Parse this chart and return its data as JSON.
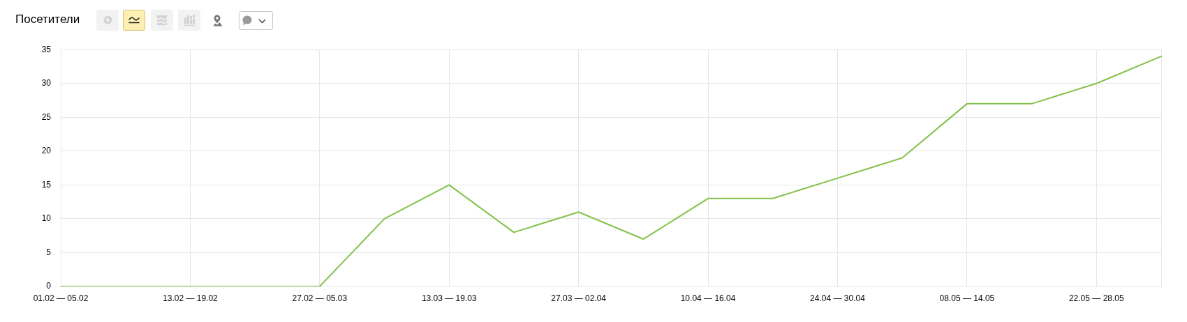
{
  "chart_data": {
    "type": "line",
    "title": "Посетители",
    "categories": [
      "01.02 — 05.02",
      null,
      "13.02 — 19.02",
      null,
      "27.02 — 05.03",
      null,
      "13.03 — 19.03",
      null,
      "27.03 — 02.04",
      null,
      "10.04 — 16.04",
      null,
      "24.04 — 30.04",
      null,
      "08.05 — 14.05",
      null,
      "22.05 — 28.05",
      null
    ],
    "values": [
      0,
      0,
      0,
      0,
      0,
      10,
      15,
      8,
      11,
      7,
      13,
      13,
      16,
      19,
      27,
      27,
      30,
      34
    ],
    "color": "#84c14b",
    "ylim": [
      0,
      35
    ],
    "yticks": [
      0,
      5,
      10,
      15,
      20,
      25,
      30,
      35
    ],
    "grid": true,
    "legend": false,
    "marker": "none",
    "line_style": "solid"
  }
}
